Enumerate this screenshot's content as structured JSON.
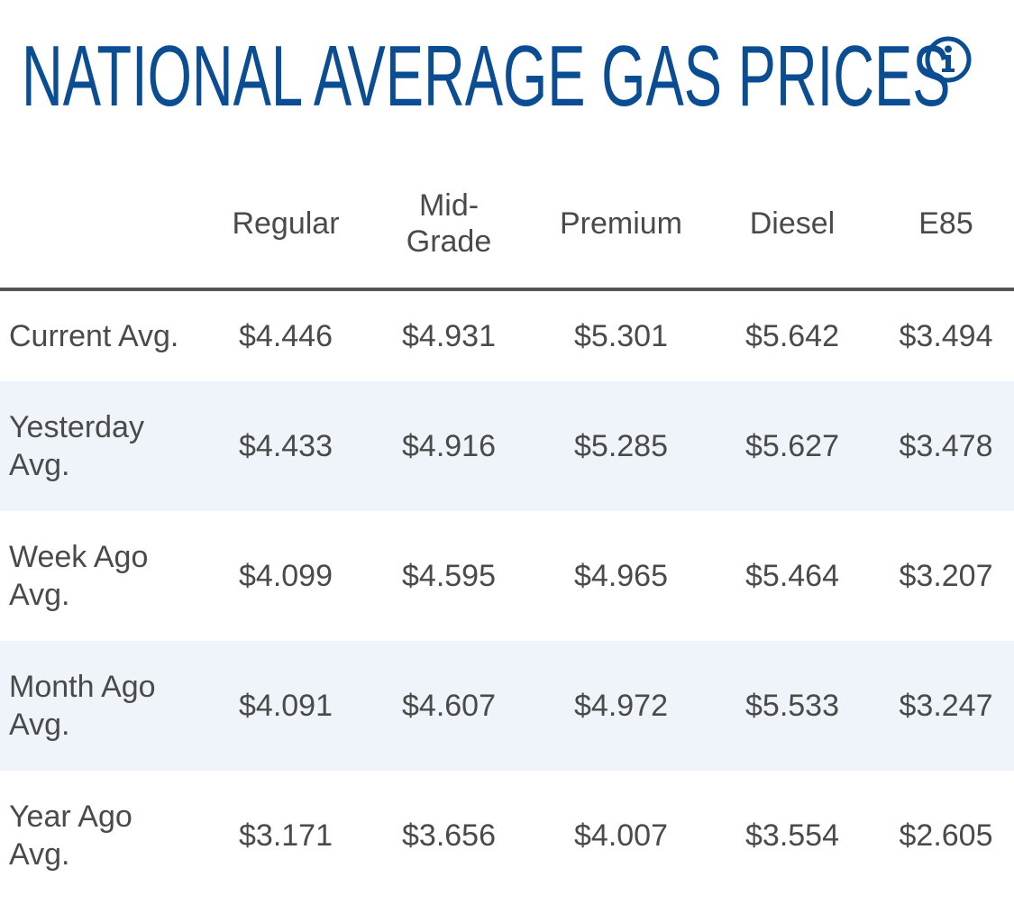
{
  "header": {
    "title": "NATIONAL AVERAGE GAS PRICES",
    "info_icon": "info-circle-icon",
    "accent_color": "#0b4d93"
  },
  "table": {
    "columns": [
      "",
      "Regular",
      "Mid-Grade",
      "Premium",
      "Diesel",
      "E85"
    ],
    "rows": [
      {
        "label": "Current Avg.",
        "values": [
          "$4.446",
          "$4.931",
          "$5.301",
          "$5.642",
          "$3.494"
        ]
      },
      {
        "label": "Yesterday Avg.",
        "values": [
          "$4.433",
          "$4.916",
          "$5.285",
          "$5.627",
          "$3.478"
        ]
      },
      {
        "label": "Week Ago Avg.",
        "values": [
          "$4.099",
          "$4.595",
          "$4.965",
          "$5.464",
          "$3.207"
        ]
      },
      {
        "label": "Month Ago Avg.",
        "values": [
          "$4.091",
          "$4.607",
          "$4.972",
          "$5.533",
          "$3.247"
        ]
      },
      {
        "label": "Year Ago Avg.",
        "values": [
          "$3.171",
          "$3.656",
          "$4.007",
          "$3.554",
          "$2.605"
        ]
      }
    ]
  }
}
